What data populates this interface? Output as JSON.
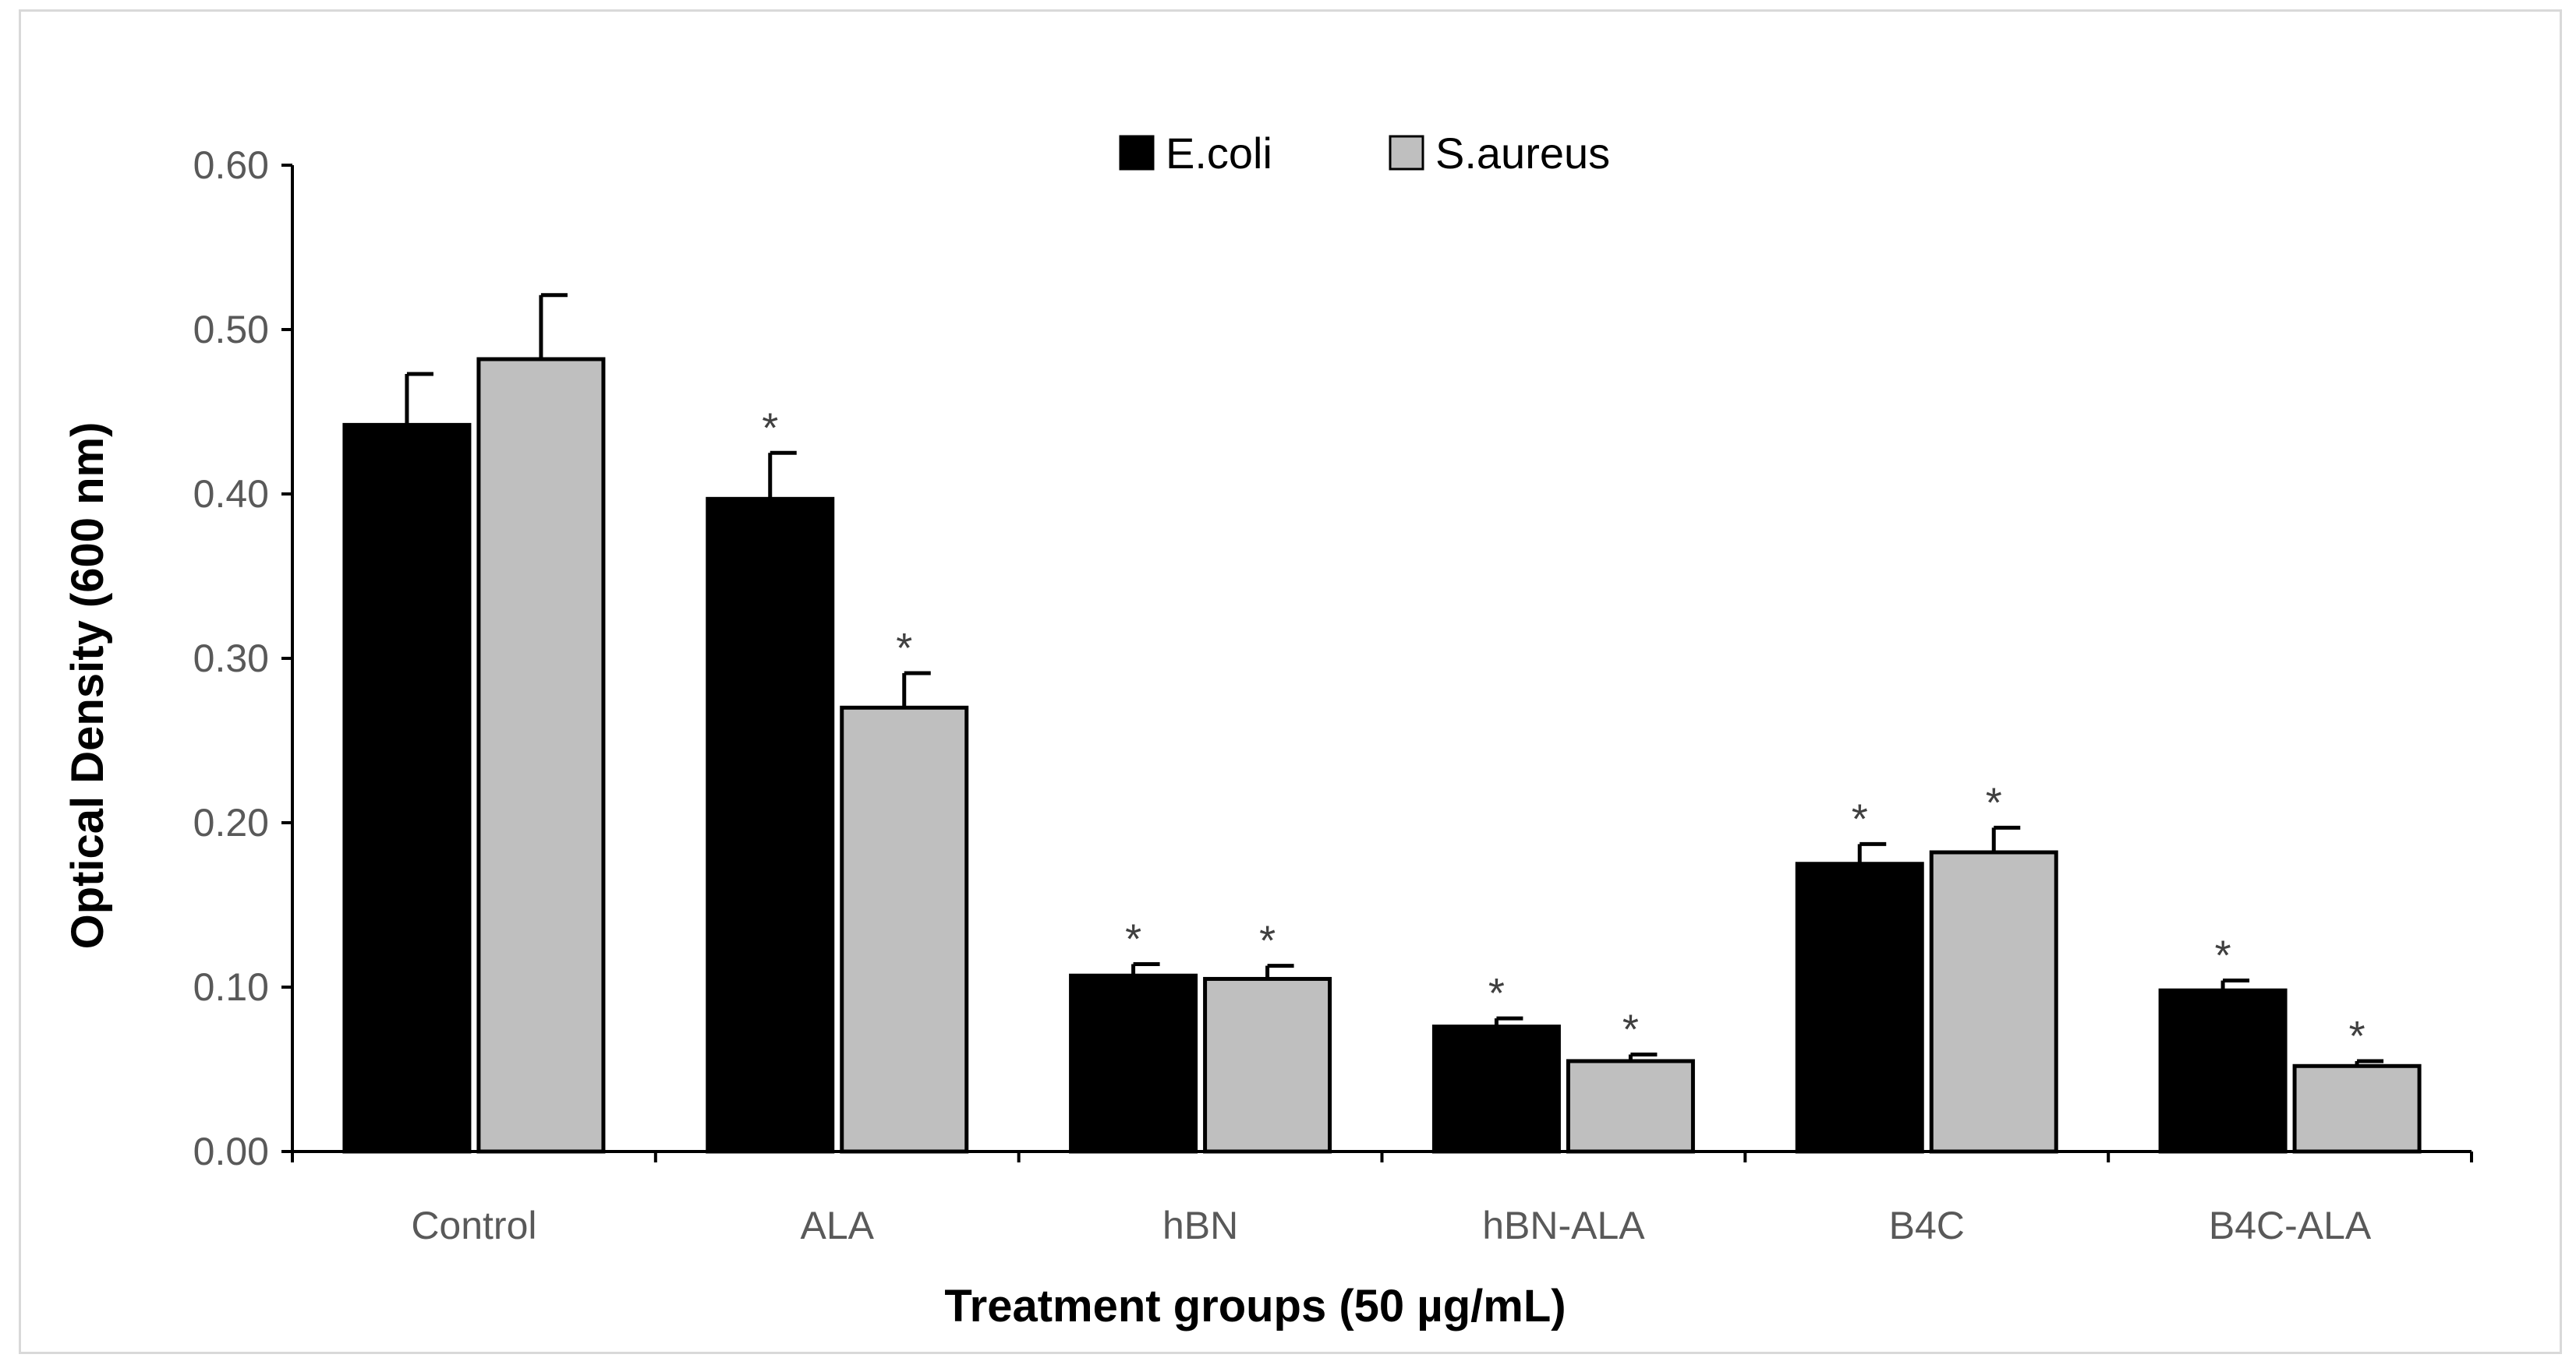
{
  "chart_data": {
    "type": "bar",
    "title": "",
    "xlabel": "Treatment groups (50 µg/mL)",
    "ylabel": "Optical Density (600 nm)",
    "ylim": [
      0,
      0.6
    ],
    "yticks": [
      "0.00",
      "0.10",
      "0.20",
      "0.30",
      "0.40",
      "0.50",
      "0.60"
    ],
    "ytick_values": [
      0,
      0.1,
      0.2,
      0.3,
      0.4,
      0.5,
      0.6
    ],
    "categories": [
      "Control",
      "ALA",
      "hBN",
      "hBN-ALA",
      "B4C",
      "B4C-ALA"
    ],
    "series": [
      {
        "name": "E.coli",
        "color": "#000000",
        "values": [
          0.442,
          0.397,
          0.107,
          0.076,
          0.175,
          0.098
        ],
        "errors": [
          0.031,
          0.028,
          0.007,
          0.005,
          0.012,
          0.006
        ],
        "significance": [
          "",
          "*",
          "*",
          "*",
          "*",
          "*"
        ]
      },
      {
        "name": "S.aureus",
        "color": "#bfbfbf",
        "values": [
          0.482,
          0.27,
          0.105,
          0.055,
          0.182,
          0.052
        ],
        "errors": [
          0.039,
          0.021,
          0.008,
          0.004,
          0.015,
          0.003
        ],
        "significance": [
          "",
          "*",
          "*",
          "*",
          "*",
          "*"
        ]
      }
    ],
    "legend_position": "top-center",
    "grid": false
  }
}
